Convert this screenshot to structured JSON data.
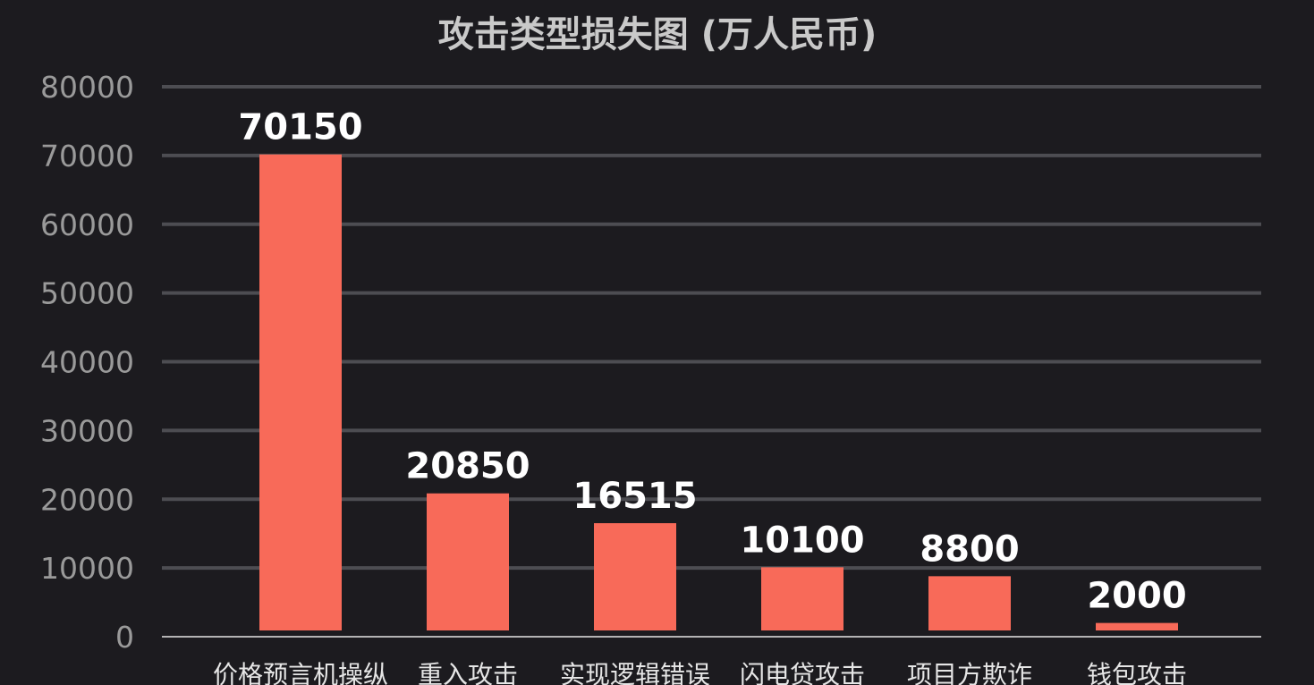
{
  "chart_data": {
    "type": "bar",
    "title": "攻击类型损失图 (万人民币)",
    "xlabel": "",
    "ylabel": "",
    "categories": [
      "价格预言机操纵",
      "重入攻击",
      "实现逻辑错误",
      "闪电贷攻击",
      "项目方欺诈",
      "钱包攻击"
    ],
    "values": [
      70150,
      20850,
      16515,
      10100,
      8800,
      2000
    ],
    "data_labels": [
      "70150",
      "20850",
      "16515",
      "10100",
      "8800",
      "2000"
    ],
    "ylim": [
      0,
      80000
    ],
    "yticks": [
      "0",
      "10000",
      "20000",
      "30000",
      "40000",
      "50000",
      "60000",
      "70000",
      "80000"
    ],
    "grid": true,
    "legend": "none",
    "colors": {
      "bar": "#f86a59",
      "background": "#1c1b1f",
      "grid": "#4d4d52",
      "title": "#c9c9c9",
      "tick": "#9a9a9a",
      "label": "#ffffff"
    }
  }
}
